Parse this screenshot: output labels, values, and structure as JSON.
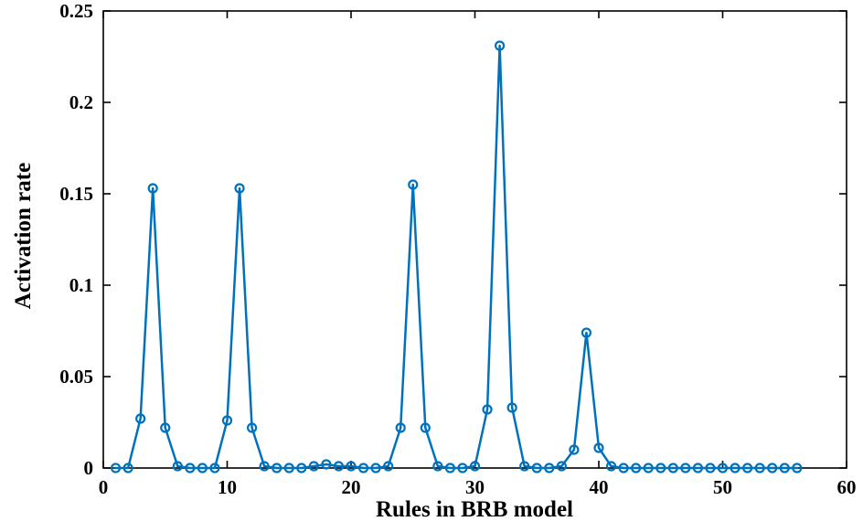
{
  "chart_data": {
    "type": "line",
    "title": "",
    "xlabel": "Rules in BRB model",
    "ylabel": "Activation rate",
    "xlim": [
      0,
      60
    ],
    "ylim": [
      0,
      0.25
    ],
    "grid": false,
    "legend_position": "none",
    "line_color": "#0072BD",
    "marker": "circle",
    "x_ticks": [
      0,
      10,
      20,
      30,
      40,
      50,
      60
    ],
    "x_tick_labels": [
      "0",
      "10",
      "20",
      "30",
      "40",
      "50",
      "60"
    ],
    "y_ticks": [
      0,
      0.05,
      0.1,
      0.15,
      0.2,
      0.25
    ],
    "y_tick_labels": [
      "0",
      "0.05",
      "0.1",
      "0.15",
      "0.2",
      "0.25"
    ],
    "x": [
      1,
      2,
      3,
      4,
      5,
      6,
      7,
      8,
      9,
      10,
      11,
      12,
      13,
      14,
      15,
      16,
      17,
      18,
      19,
      20,
      21,
      22,
      23,
      24,
      25,
      26,
      27,
      28,
      29,
      30,
      31,
      32,
      33,
      34,
      35,
      36,
      37,
      38,
      39,
      40,
      41,
      42,
      43,
      44,
      45,
      46,
      47,
      48,
      49,
      50,
      51,
      52,
      53,
      54,
      55,
      56
    ],
    "values": [
      0,
      0,
      0.027,
      0.153,
      0.022,
      0.001,
      0,
      0,
      0,
      0.026,
      0.153,
      0.022,
      0.001,
      0,
      0,
      0,
      0.001,
      0.002,
      0.001,
      0.001,
      0,
      0,
      0.001,
      0.022,
      0.155,
      0.022,
      0.001,
      0,
      0,
      0.001,
      0.032,
      0.231,
      0.033,
      0.001,
      0,
      0,
      0.001,
      0.01,
      0.074,
      0.011,
      0.001,
      0,
      0,
      0,
      0,
      0,
      0,
      0,
      0,
      0,
      0,
      0,
      0,
      0,
      0,
      0
    ]
  }
}
